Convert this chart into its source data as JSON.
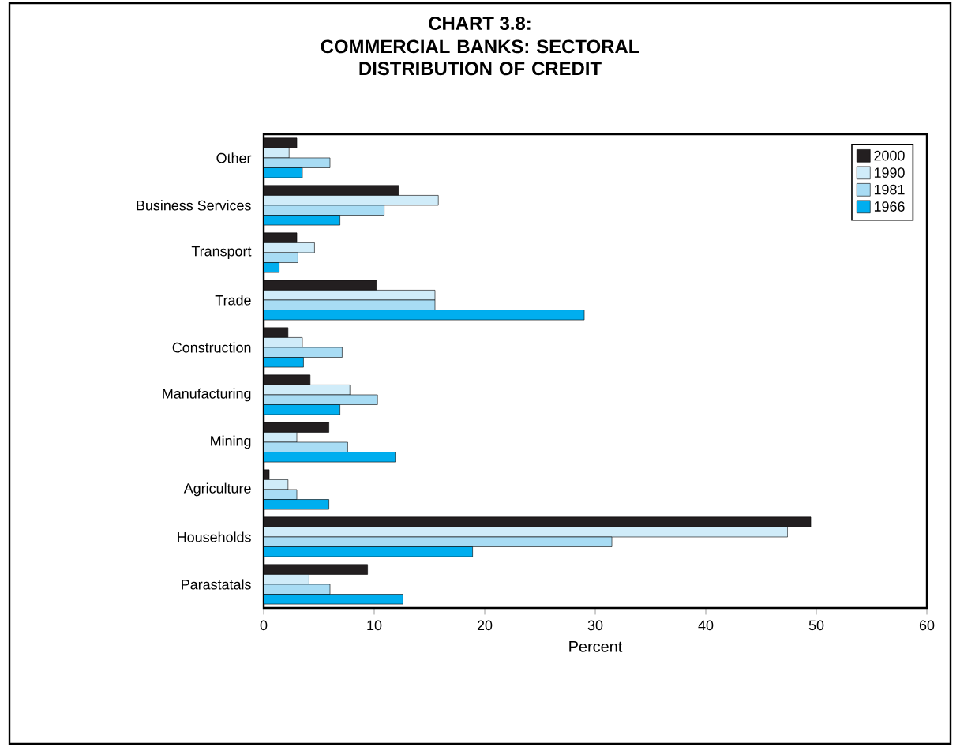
{
  "chart_data": {
    "type": "bar",
    "orientation": "horizontal",
    "title": "CHART 3.8:",
    "subtitle": "COMMERCIAL BANKS: SECTORAL DISTRIBUTION OF CREDIT",
    "xlabel": "Percent",
    "categories": [
      "Other",
      "Business Services",
      "Transport",
      "Trade",
      "Construction",
      "Manufacturing",
      "Mining",
      "Agriculture",
      "Households",
      "Parastatals"
    ],
    "series": [
      {
        "name": "2000",
        "color": "#231f20",
        "values": [
          3.0,
          12.2,
          3.0,
          10.2,
          2.2,
          4.2,
          5.9,
          0.5,
          49.5,
          9.4
        ]
      },
      {
        "name": "1990",
        "color": "#d0ecf9",
        "values": [
          2.3,
          15.8,
          4.6,
          15.5,
          3.5,
          7.8,
          3.0,
          2.2,
          47.4,
          4.1
        ]
      },
      {
        "name": "1981",
        "color": "#a8dcf4",
        "values": [
          6.0,
          10.9,
          3.1,
          15.5,
          7.1,
          10.3,
          7.6,
          3.0,
          31.5,
          6.0
        ]
      },
      {
        "name": "1966",
        "color": "#00aeef",
        "values": [
          3.5,
          6.9,
          1.4,
          29.0,
          3.6,
          6.9,
          11.9,
          5.9,
          18.9,
          12.6
        ]
      }
    ],
    "xlim": [
      0,
      60
    ],
    "xticks": [
      0,
      10,
      20,
      30,
      40,
      50,
      60
    ],
    "legend": "top right",
    "grid": false
  }
}
